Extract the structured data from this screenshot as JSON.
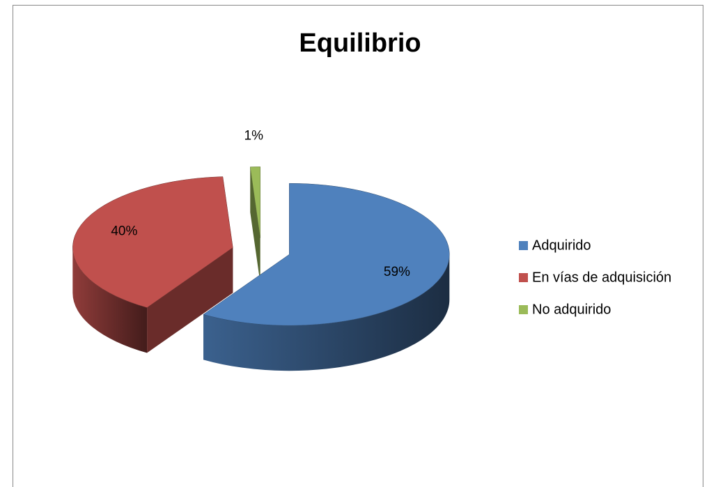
{
  "chart_data": {
    "type": "pie",
    "title": "Equilibrio",
    "categories": [
      "Adquirido",
      "En vías de adquisición",
      "No adquirido"
    ],
    "values": [
      59,
      40,
      1
    ],
    "value_labels": [
      "59%",
      "40%",
      "1%"
    ],
    "colors": [
      "#4f81bd",
      "#c0504d",
      "#9bbb59"
    ],
    "legend": "right"
  }
}
